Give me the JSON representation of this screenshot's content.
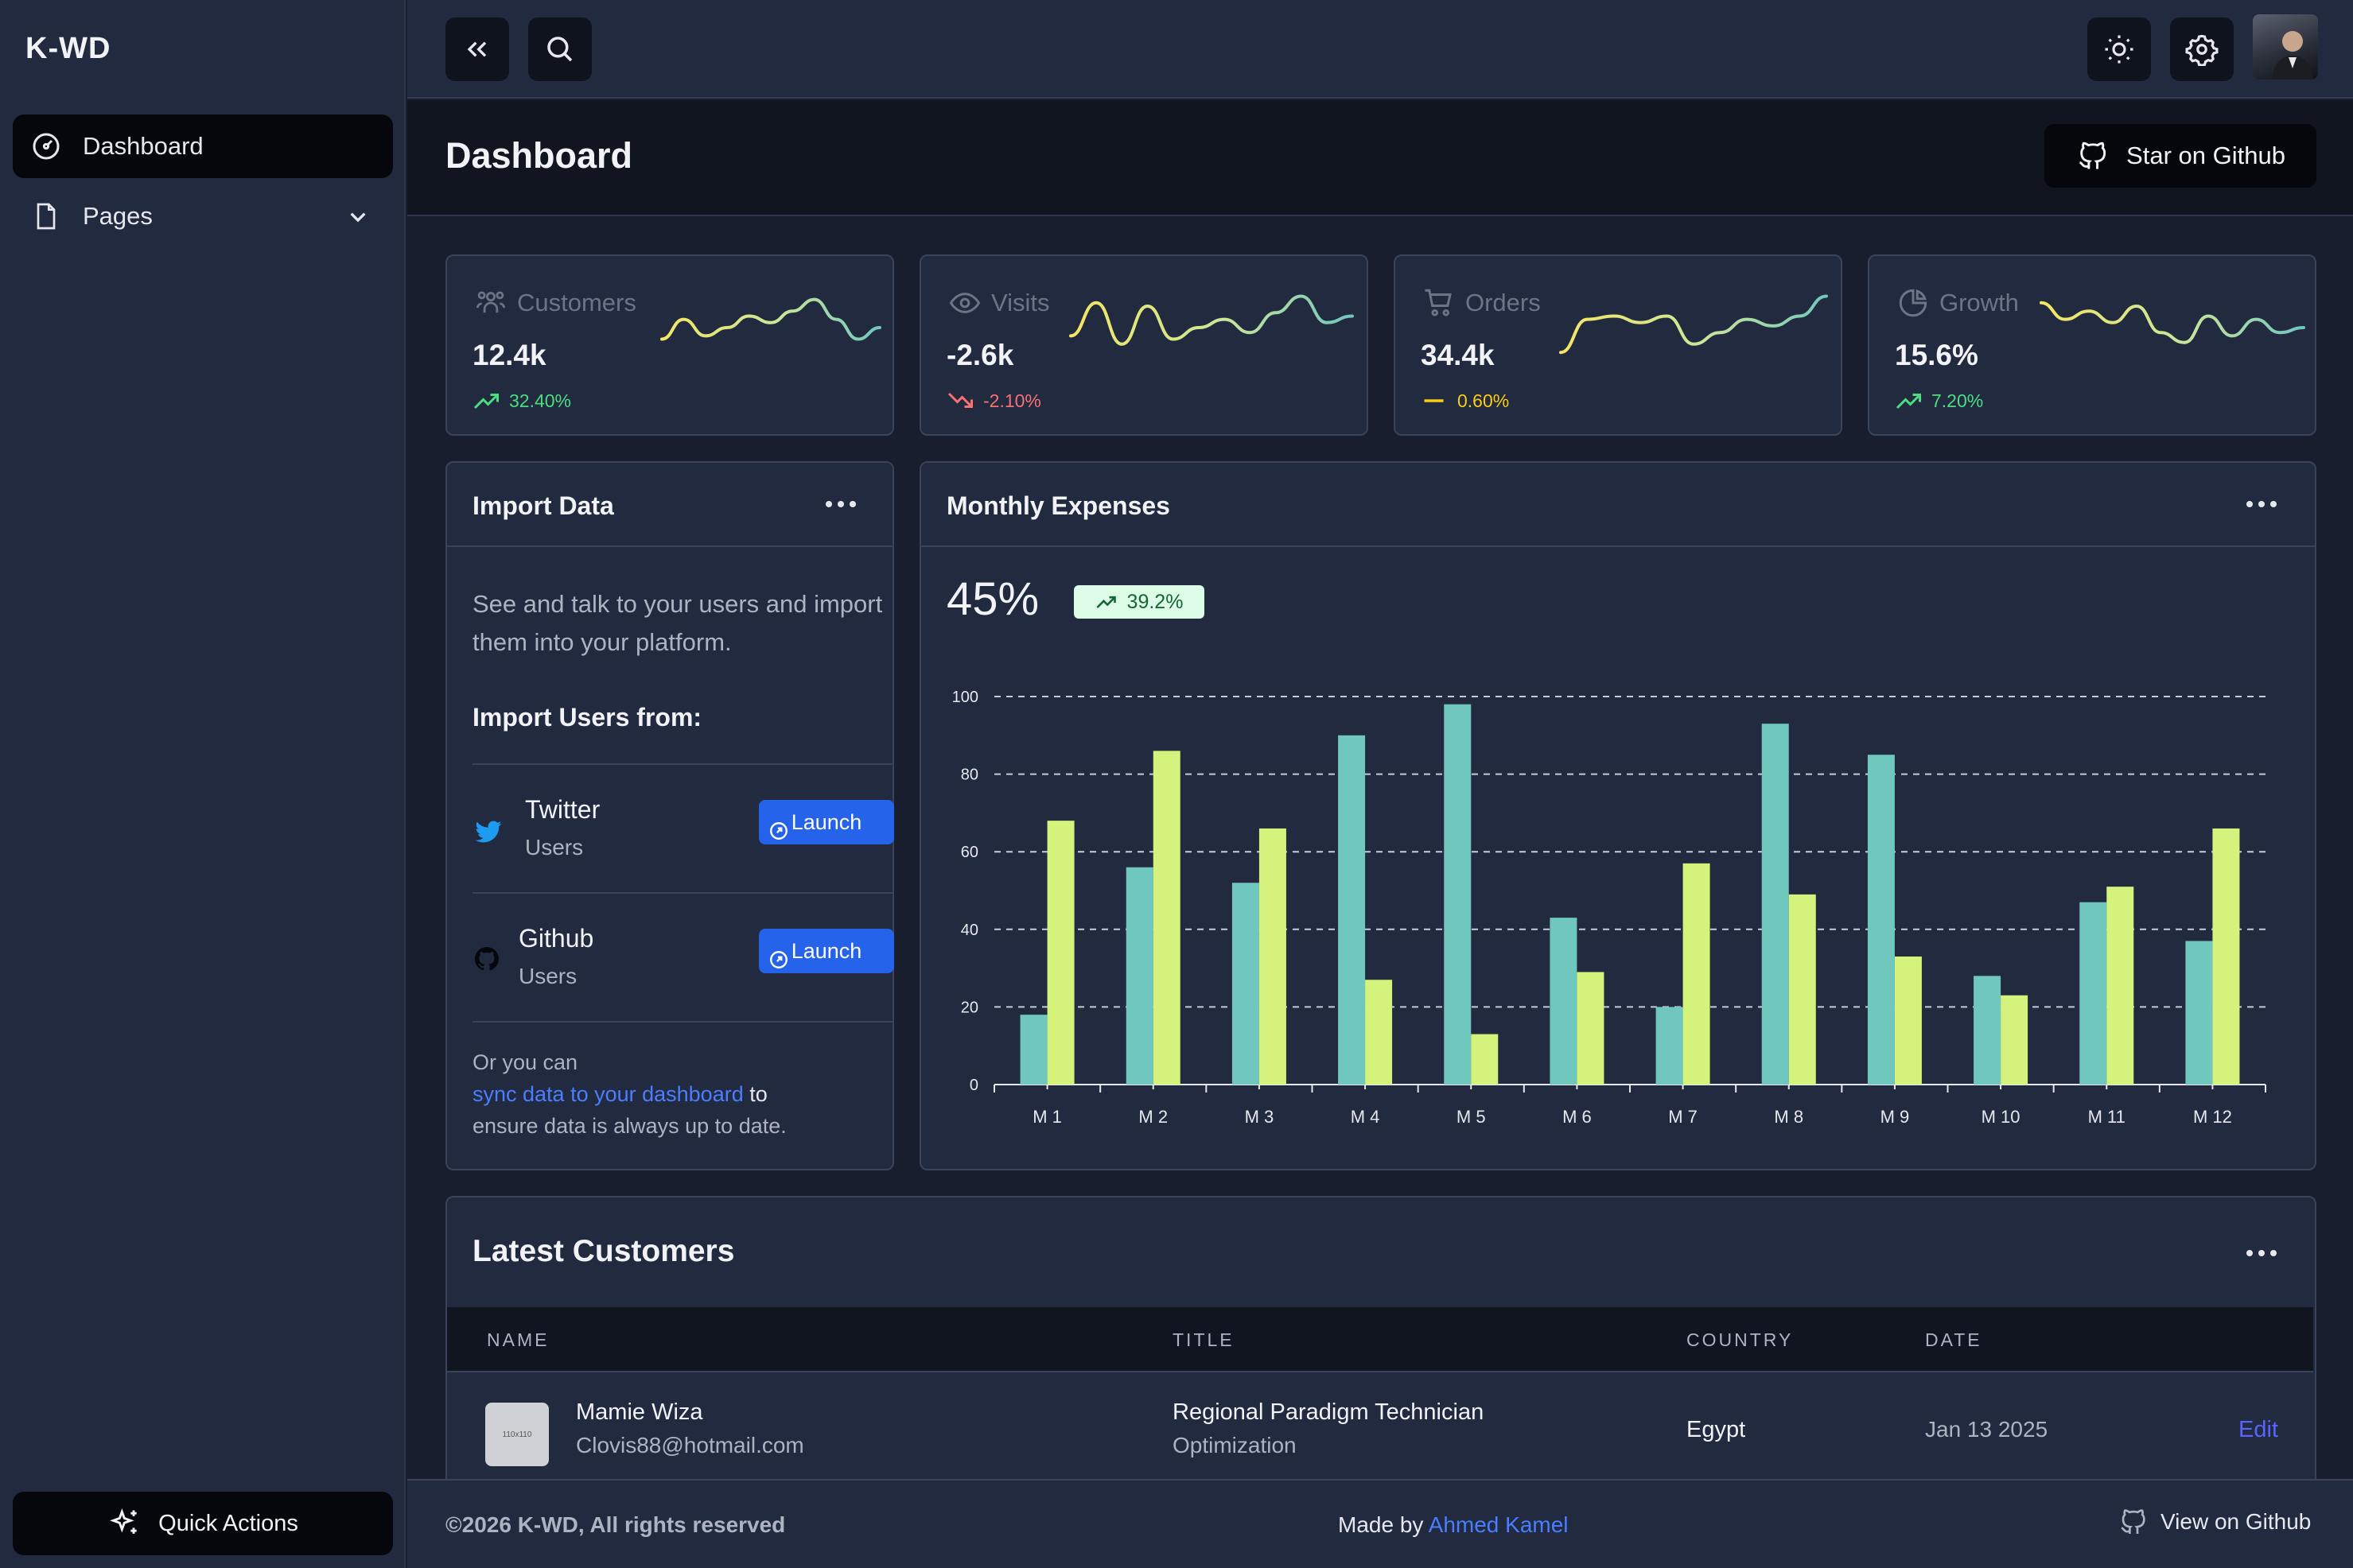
{
  "brand": "K-WD",
  "sidebar": {
    "items": [
      {
        "label": "Dashboard",
        "icon": "dashboard-gauge-icon"
      },
      {
        "label": "Pages",
        "icon": "document-icon"
      }
    ],
    "quick_actions": "Quick Actions"
  },
  "header": {
    "title": "Dashboard",
    "star_label": "Star on Github"
  },
  "stats": [
    {
      "label": "Customers",
      "value": "12.4k",
      "change": "32.40%",
      "trend": "up",
      "icon": "users-icon",
      "spark": [
        48,
        60,
        50,
        55,
        62,
        58,
        65,
        72,
        60,
        48,
        55
      ]
    },
    {
      "label": "Visits",
      "value": "-2.6k",
      "change": "-2.10%",
      "trend": "down",
      "icon": "eye-icon",
      "spark": [
        50,
        70,
        45,
        68,
        48,
        55,
        60,
        52,
        64,
        74,
        58,
        62
      ]
    },
    {
      "label": "Orders",
      "value": "34.4k",
      "change": "0.60%",
      "trend": "flat",
      "icon": "cart-icon",
      "spark": [
        40,
        60,
        62,
        58,
        62,
        45,
        52,
        60,
        56,
        62,
        74
      ]
    },
    {
      "label": "Growth",
      "value": "15.6%",
      "change": "7.20%",
      "trend": "up",
      "icon": "pie-chart-icon",
      "spark": [
        70,
        60,
        65,
        58,
        68,
        52,
        46,
        62,
        50,
        60,
        52,
        55
      ]
    }
  ],
  "colors": {
    "up": "#4ade80",
    "down": "#f87171",
    "flat": "#facc15",
    "teal": "#6fc7bd",
    "lime": "#d4f27c",
    "accent": "#2563eb"
  },
  "import_card": {
    "title": "Import Data",
    "description": "See and talk to your users and import them into your platform.",
    "subtitle": "Import Users from:",
    "sources": [
      {
        "name": "Twitter",
        "sub": "Users",
        "button": "Launch",
        "icon": "twitter-icon"
      },
      {
        "name": "Github",
        "sub": "Users",
        "button": "Launch",
        "icon": "github-icon"
      }
    ],
    "footer_pre": "Or you can",
    "footer_link": "sync data to your dashboard",
    "footer_post": " to",
    "footer_line3": "ensure data is always up to date."
  },
  "expenses": {
    "title": "Monthly Expenses",
    "big_value": "45%",
    "badge": "39.2%"
  },
  "chart_data": {
    "type": "bar",
    "title": "Monthly Expenses",
    "categories": [
      "M 1",
      "M 2",
      "M 3",
      "M 4",
      "M 5",
      "M 6",
      "M 7",
      "M 8",
      "M 9",
      "M 10",
      "M 11",
      "M 12"
    ],
    "series": [
      {
        "values": [
          18,
          56,
          52,
          90,
          98,
          43,
          20,
          93,
          85,
          28,
          47,
          37
        ]
      },
      {
        "values": [
          68,
          86,
          66,
          27,
          13,
          29,
          57,
          49,
          33,
          23,
          51,
          66
        ]
      }
    ],
    "ylim": [
      0,
      100
    ],
    "yticks": [
      0,
      20,
      40,
      60,
      80,
      100
    ],
    "grid": true,
    "legend": "none"
  },
  "customers": {
    "title": "Latest Customers",
    "columns": [
      "NAME",
      "TITLE",
      "COUNTRY",
      "DATE"
    ],
    "rows": [
      {
        "name": "Mamie Wiza",
        "email": "Clovis88@hotmail.com",
        "title": "Regional Paradigm Technician",
        "dept": "Optimization",
        "country": "Egypt",
        "date": "Jan 13 2025",
        "action": "Edit",
        "thumb": "110x110"
      }
    ]
  },
  "footer": {
    "copyright": "©2026 K-WD, All rights reserved",
    "made_by": "Made by ",
    "author": "Ahmed Kamel",
    "view_github": "View on Github"
  }
}
